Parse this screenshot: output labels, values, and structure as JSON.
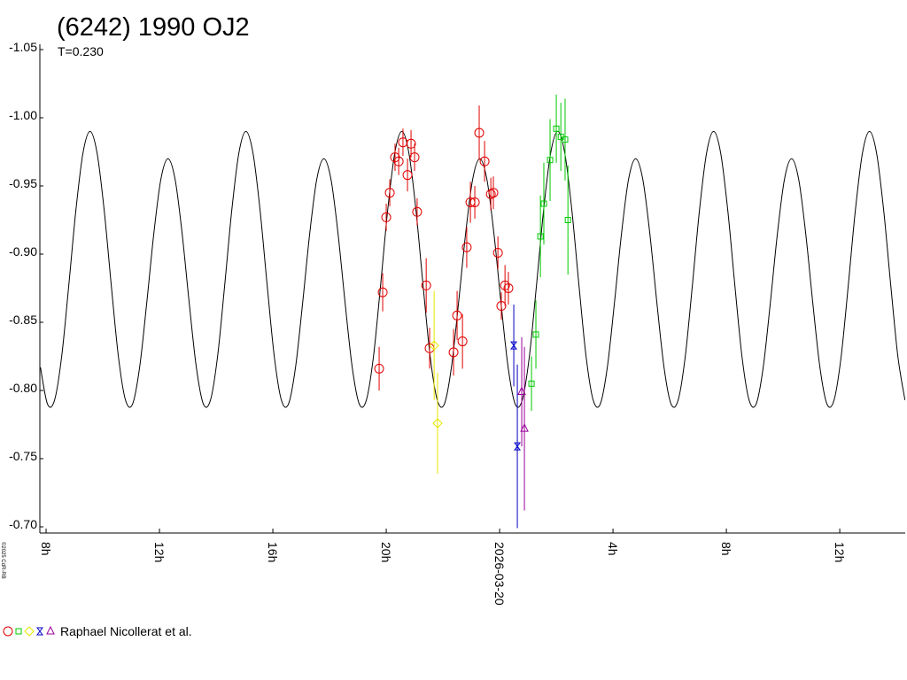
{
  "chart_data": {
    "type": "scatter",
    "title": "(6242) 1990 OJ2",
    "subtitle": "T=0.230",
    "legend_label": "Raphael Nicollerat et al.",
    "copyright": "©2025 CdR-RB",
    "y_reversed": true,
    "xlim": [
      7.78,
      38.31
    ],
    "ylim": [
      -1.05,
      -0.7
    ],
    "xticks": [
      {
        "value": 8,
        "label": "8h"
      },
      {
        "value": 12,
        "label": "12h"
      },
      {
        "value": 16,
        "label": "16h"
      },
      {
        "value": 20,
        "label": "20h"
      },
      {
        "value": 24,
        "label": "2026-03-20"
      },
      {
        "value": 28,
        "label": "4h"
      },
      {
        "value": 32,
        "label": "8h"
      },
      {
        "value": 36,
        "label": "12h"
      }
    ],
    "yticks": [
      -1.05,
      {
        "value": -1,
        "label": "-1.00"
      },
      -0.95,
      {
        "value": -0.9,
        "label": "-0.90"
      },
      -0.85,
      {
        "value": -0.8,
        "label": "-0.80"
      },
      -0.75,
      {
        "value": -0.7,
        "label": "-0.70"
      }
    ],
    "series": [
      {
        "type": "line",
        "color": "#000000",
        "x": [
          7.8,
          8.05,
          8.3,
          8.55,
          8.8,
          9.05,
          9.3,
          9.55,
          9.8,
          10.05,
          10.3,
          10.55,
          10.8,
          11.05,
          11.3,
          11.55,
          11.8,
          12.05,
          12.3,
          12.55,
          12.8,
          13.05,
          13.3,
          13.55,
          13.8,
          14.05,
          14.3,
          14.55,
          14.8,
          15.05,
          15.3,
          15.55,
          15.8,
          16.05,
          16.3,
          16.55,
          16.8,
          17.05,
          17.3,
          17.55,
          17.8,
          18.05,
          18.3,
          18.55,
          18.8,
          19.05,
          19.3,
          19.55,
          19.8,
          20.05,
          20.3,
          20.55,
          20.8,
          21.05,
          21.3,
          21.55,
          21.8,
          22.05,
          22.3,
          22.55,
          22.8,
          23.05,
          23.3,
          23.55,
          23.8,
          24.05,
          24.3,
          24.55,
          24.8,
          25.05,
          25.3,
          25.55,
          25.8,
          26.05,
          26.3,
          26.55,
          26.8,
          27.05,
          27.3,
          27.55,
          27.8,
          28.05,
          28.3,
          28.55,
          28.8,
          29.05,
          29.3,
          29.55,
          29.8,
          30.05,
          30.3,
          30.55,
          30.8,
          31.05,
          31.3,
          31.55,
          31.8,
          32.05,
          32.3,
          32.55,
          32.8,
          33.05,
          33.3,
          33.55,
          33.8,
          34.05,
          34.3,
          34.55,
          34.8,
          35.05,
          35.3,
          35.55,
          35.8,
          36.05,
          36.3,
          36.55,
          36.8,
          37.05,
          37.3,
          37.55,
          37.8,
          38.05,
          38.3
        ],
        "values": [
          -0.817,
          -0.79,
          -0.793,
          -0.825,
          -0.877,
          -0.932,
          -0.974,
          -0.99,
          -0.974,
          -0.932,
          -0.877,
          -0.825,
          -0.793,
          -0.79,
          -0.817,
          -0.864,
          -0.915,
          -0.955,
          -0.97,
          -0.955,
          -0.915,
          -0.864,
          -0.817,
          -0.79,
          -0.793,
          -0.825,
          -0.877,
          -0.932,
          -0.974,
          -0.99,
          -0.974,
          -0.932,
          -0.877,
          -0.825,
          -0.793,
          -0.79,
          -0.817,
          -0.864,
          -0.915,
          -0.955,
          -0.97,
          -0.955,
          -0.915,
          -0.864,
          -0.817,
          -0.79,
          -0.793,
          -0.825,
          -0.877,
          -0.932,
          -0.974,
          -0.99,
          -0.974,
          -0.932,
          -0.877,
          -0.825,
          -0.793,
          -0.79,
          -0.817,
          -0.864,
          -0.915,
          -0.955,
          -0.97,
          -0.955,
          -0.915,
          -0.864,
          -0.817,
          -0.79,
          -0.793,
          -0.825,
          -0.877,
          -0.932,
          -0.974,
          -0.99,
          -0.974,
          -0.932,
          -0.877,
          -0.825,
          -0.793,
          -0.79,
          -0.817,
          -0.864,
          -0.915,
          -0.955,
          -0.97,
          -0.955,
          -0.915,
          -0.864,
          -0.817,
          -0.79,
          -0.793,
          -0.825,
          -0.877,
          -0.932,
          -0.974,
          -0.99,
          -0.974,
          -0.932,
          -0.877,
          -0.825,
          -0.793,
          -0.79,
          -0.817,
          -0.864,
          -0.915,
          -0.955,
          -0.97,
          -0.955,
          -0.915,
          -0.864,
          -0.817,
          -0.79,
          -0.793,
          -0.825,
          -0.877,
          -0.932,
          -0.974,
          -0.99,
          -0.974,
          -0.932,
          -0.877,
          -0.825,
          -0.793
        ]
      },
      {
        "type": "scatter",
        "marker": "circle",
        "color": "#e00000",
        "x": [
          19.75,
          19.875,
          20.0,
          20.125,
          20.31,
          20.44,
          20.59,
          20.75,
          20.875,
          21.0,
          21.09,
          21.41,
          21.53,
          22.375,
          22.5,
          22.69,
          22.84,
          22.97,
          23.125,
          23.28,
          23.47,
          23.69,
          23.78,
          23.94,
          24.06,
          24.19,
          24.31
        ],
        "values": [
          -0.816,
          -0.872,
          -0.927,
          -0.945,
          -0.971,
          -0.968,
          -0.982,
          -0.958,
          -0.981,
          -0.971,
          -0.931,
          -0.877,
          -0.831,
          -0.828,
          -0.855,
          -0.836,
          -0.905,
          -0.938,
          -0.938,
          -0.989,
          -0.968,
          -0.944,
          -0.945,
          -0.901,
          -0.862,
          -0.877,
          -0.875
        ],
        "errors": [
          0.016,
          0.014,
          0.01,
          0.01,
          0.01,
          0.01,
          0.01,
          0.012,
          0.01,
          0.01,
          0.01,
          0.02,
          0.015,
          0.017,
          0.018,
          0.02,
          0.015,
          0.015,
          0.012,
          0.02,
          0.015,
          0.012,
          0.012,
          0.012,
          0.01,
          0.015,
          0.012
        ]
      },
      {
        "type": "scatter",
        "marker": "square",
        "color": "#00c800",
        "x": [
          25.125,
          25.28,
          25.44,
          25.56,
          25.78,
          26.0,
          26.16,
          26.31,
          26.41
        ],
        "values": [
          -0.805,
          -0.841,
          -0.913,
          -0.937,
          -0.969,
          -0.992,
          -0.986,
          -0.984,
          -0.925
        ],
        "errors": [
          0.02,
          0.025,
          0.03,
          0.03,
          0.03,
          0.025,
          0.025,
          0.03,
          0.04
        ]
      },
      {
        "type": "scatter",
        "marker": "diamond",
        "color": "#e6e600",
        "x": [
          21.69,
          21.81
        ],
        "values": [
          -0.833,
          -0.776
        ],
        "errors": [
          0.04,
          0.037
        ]
      },
      {
        "type": "scatter",
        "marker": "bowtie",
        "color": "#0000c8",
        "x": [
          24.5,
          24.625
        ],
        "values": [
          -0.833,
          -0.759
        ],
        "errors": [
          0.03,
          0.06
        ]
      },
      {
        "type": "scatter",
        "marker": "triangle",
        "color": "#990099",
        "x": [
          24.78,
          24.875
        ],
        "values": [
          -0.799,
          -0.772
        ],
        "errors": [
          0.04,
          0.06
        ]
      }
    ]
  }
}
